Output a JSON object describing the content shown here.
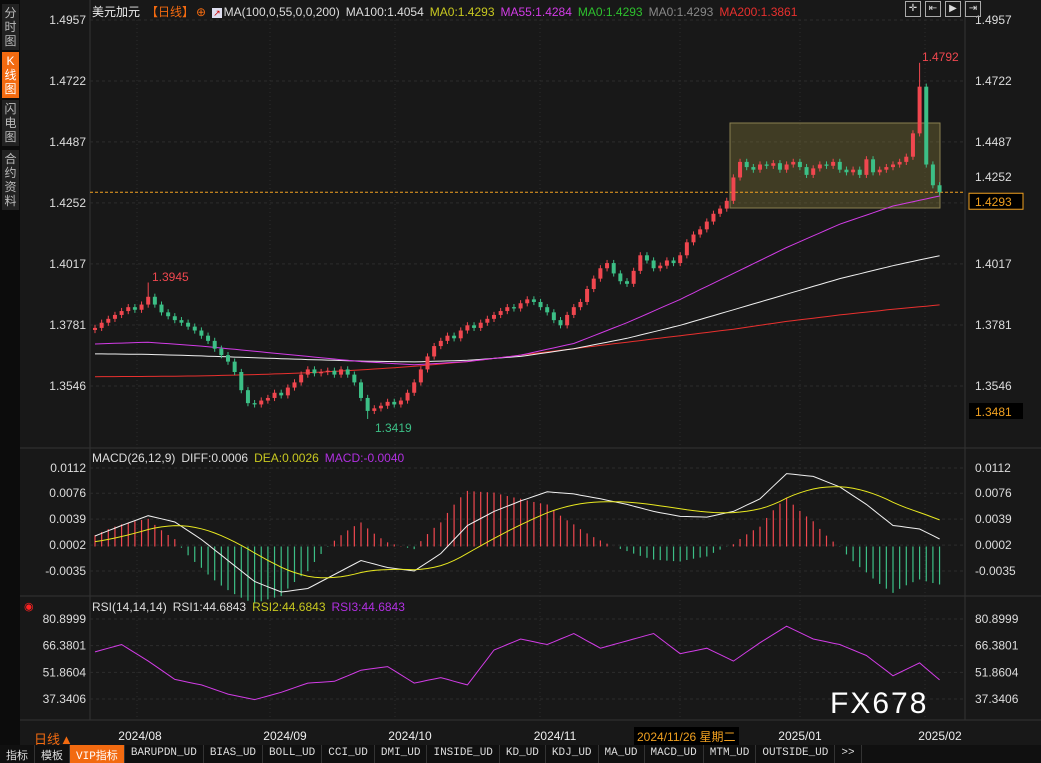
{
  "sidebar": {
    "items": [
      {
        "label": "分时图",
        "active": false
      },
      {
        "label": "K线图",
        "active": true
      },
      {
        "label": "闪电图",
        "active": false
      },
      {
        "label": "合约资料",
        "active": false
      }
    ]
  },
  "header": {
    "symbol": "美元加元",
    "period": "【日线】",
    "ma_title": "MA(100,0,55,0,0,200)",
    "ma100": "MA100:1.4054",
    "ma0a": "MA0:1.4293",
    "ma55": "MA55:1.4284",
    "ma0b": "MA0:1.4293",
    "ma0c": "MA0:1.4293",
    "ma200": "MA200:1.3861"
  },
  "toolbar_icons": [
    "crosshair-icon",
    "zoom-in-range-icon",
    "zoom-out-range-icon",
    "jump-end-icon"
  ],
  "colors": {
    "up": "#f0474f",
    "down": "#3cbf86",
    "ma55": "#d23ce6",
    "ma100": "#f0f0f0",
    "ma200": "#e8302e",
    "diff": "#f0f0f0",
    "dea": "#e8e820",
    "rsi": "#d23ce6",
    "accent": "#f26a10"
  },
  "chart_data": [
    {
      "type": "candlestick",
      "title": "美元加元【日线】",
      "y_ticks": [
        "1.4957",
        "1.4722",
        "1.4487",
        "1.4252",
        "1.4017",
        "1.3781",
        "1.3546"
      ],
      "ylim": [
        1.3481,
        1.4957
      ],
      "x_ticks": [
        "2024/08",
        "2024/09",
        "2024/10",
        "2024/11",
        "2025/01",
        "2025/02"
      ],
      "cursor_date": "2024/11/26 星期二",
      "last_price": "1.4293",
      "low_box": "1.3481",
      "annotations": {
        "high1": "1.3945",
        "low": "1.3419",
        "high2": "1.4792"
      },
      "closes": [
        1.377,
        1.379,
        1.3805,
        1.382,
        1.3835,
        1.385,
        1.384,
        1.386,
        1.389,
        1.386,
        1.383,
        1.3815,
        1.38,
        1.379,
        1.3775,
        1.376,
        1.374,
        1.372,
        1.369,
        1.3665,
        1.364,
        1.36,
        1.353,
        1.348,
        1.3475,
        1.349,
        1.35,
        1.352,
        1.351,
        1.354,
        1.356,
        1.359,
        1.361,
        1.3595,
        1.36,
        1.3605,
        1.359,
        1.361,
        1.359,
        1.356,
        1.35,
        1.345,
        1.346,
        1.347,
        1.3485,
        1.3475,
        1.349,
        1.352,
        1.356,
        1.361,
        1.366,
        1.37,
        1.372,
        1.374,
        1.373,
        1.376,
        1.378,
        1.377,
        1.379,
        1.3805,
        1.382,
        1.3835,
        1.385,
        1.3845,
        1.3865,
        1.388,
        1.387,
        1.385,
        1.383,
        1.38,
        1.378,
        1.382,
        1.385,
        1.387,
        1.392,
        1.396,
        1.4,
        1.402,
        1.398,
        1.395,
        1.394,
        1.399,
        1.405,
        1.403,
        1.4,
        1.401,
        1.403,
        1.402,
        1.405,
        1.41,
        1.413,
        1.415,
        1.418,
        1.421,
        1.423,
        1.426,
        1.435,
        1.441,
        1.439,
        1.438,
        1.44,
        1.4395,
        1.4405,
        1.438,
        1.44,
        1.441,
        1.439,
        1.436,
        1.4385,
        1.44,
        1.4395,
        1.441,
        1.438,
        1.437,
        1.438,
        1.436,
        1.442,
        1.437,
        1.438,
        1.439,
        1.44,
        1.441,
        1.443,
        1.452,
        1.47,
        1.44,
        1.432,
        1.4293
      ],
      "ma55_every8": [
        1.3708,
        1.3715,
        1.37,
        1.368,
        1.366,
        1.364,
        1.3628,
        1.364,
        1.3665,
        1.371,
        1.379,
        1.388,
        1.398,
        1.408,
        1.417,
        1.424,
        1.4284
      ],
      "ma100_every8": [
        1.367,
        1.3668,
        1.3662,
        1.3655,
        1.3648,
        1.3642,
        1.3639,
        1.3645,
        1.366,
        1.369,
        1.373,
        1.378,
        1.384,
        1.39,
        1.396,
        1.401,
        1.4054
      ],
      "ma200_every8": [
        1.3582,
        1.3583,
        1.3585,
        1.359,
        1.3597,
        1.3608,
        1.3622,
        1.364,
        1.3665,
        1.369,
        1.3715,
        1.374,
        1.3765,
        1.3795,
        1.382,
        1.3842,
        1.3861
      ]
    },
    {
      "type": "macd",
      "title": "MACD(26,12,9)",
      "diff_label": "DIFF:0.0006",
      "dea_label": "DEA:0.0026",
      "macd_label": "MACD:-0.0040",
      "y_ticks": [
        "0.0112",
        "0.0076",
        "0.0039",
        "0.0002",
        "-0.0035"
      ],
      "ylim": [
        -0.007,
        0.0112
      ],
      "diff_every4": [
        0.0015,
        0.003,
        0.0044,
        0.0035,
        0.001,
        -0.002,
        -0.005,
        -0.0065,
        -0.006,
        -0.004,
        -0.002,
        -0.003,
        -0.0035,
        -0.001,
        0.003,
        0.005,
        0.0065,
        0.0078,
        0.0075,
        0.0068,
        0.006,
        0.005,
        0.0043,
        0.0042,
        0.005,
        0.0068,
        0.0104,
        0.01,
        0.0085,
        0.006,
        0.003,
        0.0025,
        0.0006
      ]
    },
    {
      "type": "line",
      "title": "RSI(14,14,14)",
      "rsi1": "RSI1:44.6843",
      "rsi2": "RSI2:44.6843",
      "rsi3": "RSI3:44.6843",
      "y_ticks": [
        "80.8999",
        "66.3801",
        "51.8604",
        "37.3406"
      ],
      "ylim": [
        30,
        85
      ],
      "rsi_every4": [
        63,
        67,
        58,
        48,
        45,
        40,
        37,
        41,
        46,
        47,
        53,
        55,
        46,
        49,
        45,
        64,
        70,
        67,
        73,
        65,
        69,
        73,
        62,
        65,
        58,
        68,
        77,
        70,
        67,
        61,
        50,
        57,
        44.68
      ]
    }
  ],
  "bottom": {
    "period": "日线▲",
    "tabs": [
      "指标",
      "模板",
      "VIP指标",
      "BARUPDN_UD",
      "BIAS_UD",
      "BOLL_UD",
      "CCI_UD",
      "DMI_UD",
      "INSIDE_UD",
      "KD_UD",
      "KDJ_UD",
      "MA_UD",
      "MACD_UD",
      "MTM_UD",
      "OUTSIDE_UD",
      ">>"
    ]
  },
  "watermark": "FX678"
}
